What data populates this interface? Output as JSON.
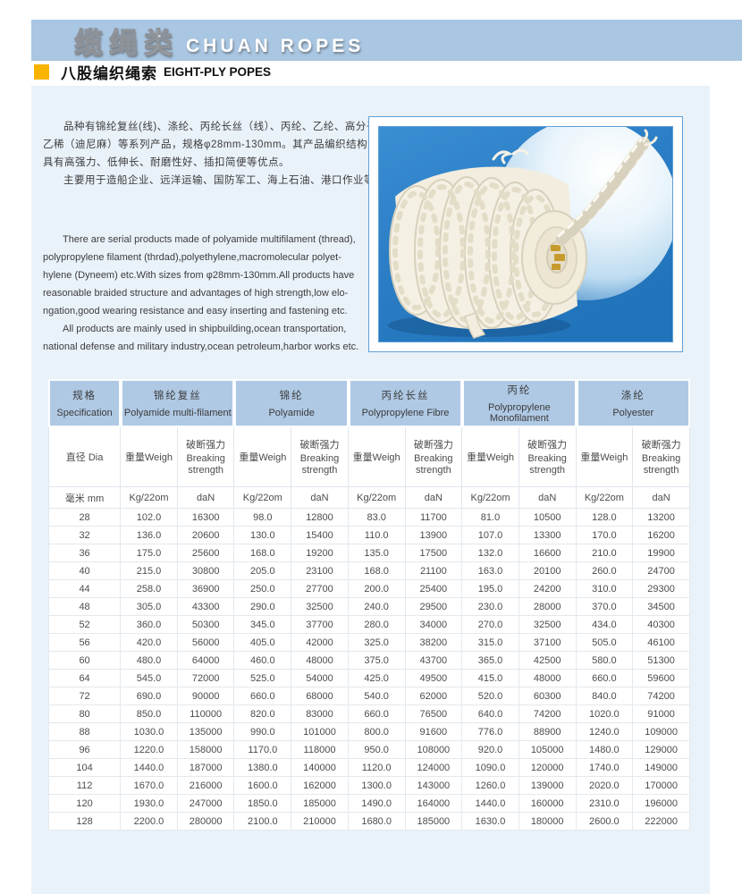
{
  "colors": {
    "band_bg": "#a9c6e2",
    "panel_bg": "#e9f1f9",
    "table_header_bg": "#afc9e4",
    "bullet_yellow": "#f8b400",
    "photo_blue": "#2a7cc4"
  },
  "header": {
    "title_zh": "缆绳类",
    "title_en": "CHUAN ROPES"
  },
  "section": {
    "title_zh": "八股编织绳索",
    "title_en": "EIGHT-PLY POPES"
  },
  "intro": {
    "zh_lines": [
      {
        "text": "品种有锦纶复丝(线)、涤纶、丙纶长丝（线）、丙纶、乙纶、高分子聚",
        "indent": true
      },
      {
        "text": "乙稀（迪尼麻）等系列产品，规格φ28mm-130mm。其产品编织结构合理，",
        "indent": false
      },
      {
        "text": "具有高强力、低伸长、耐磨性好、插扣简便等优点。",
        "indent": false
      },
      {
        "text": "主要用于造船企业、远洋运输、国防军工、海上石油、港口作业等领域。",
        "indent": true
      }
    ],
    "en_lines": [
      {
        "text": "There are serial products made of polyamide multifilament (thread),",
        "indent": true
      },
      {
        "text": "polypropylene filament (thrdad),polyethylene,macromolecular polyet-",
        "indent": false
      },
      {
        "text": "hylene (Dyneem) etc.With sizes from φ28mm-130mm.All products have",
        "indent": false
      },
      {
        "text": "reasonable braided structure and advantages of high strength,low elo-",
        "indent": false
      },
      {
        "text": "ngation,good wearing resistance and easy  inserting and fastening etc.",
        "indent": false
      },
      {
        "text": "All products are mainly used in shipbuilding,ocean transportation,",
        "indent": true
      },
      {
        "text": "national defense and military industry,ocean petroleum,harbor works etc.",
        "indent": false
      }
    ]
  },
  "photo": {
    "subject": "eight-ply-rope-coil"
  },
  "table": {
    "spec": {
      "zh": "规格",
      "en": "Specification",
      "dia": "直径 Dia",
      "unit": "毫米 mm"
    },
    "groups": [
      {
        "zh": "锦纶复丝",
        "en": "Polyamide multi-filament"
      },
      {
        "zh": "锦纶",
        "en": "Polyamide"
      },
      {
        "zh": "丙纶长丝",
        "en": "Polypropylene Fibre"
      },
      {
        "zh": "丙纶",
        "en": "Polypropylene Monofilament"
      },
      {
        "zh": "涤纶",
        "en": "Polyester"
      }
    ],
    "sub": {
      "weight_zh": "重量",
      "weight_en": "Weigh",
      "strength_zh": "破断强力",
      "strength_en": "Breaking strength"
    },
    "units": {
      "weight": "Kg/22om",
      "strength": "daN"
    },
    "rows": [
      [
        "28",
        "102.0",
        "16300",
        "98.0",
        "12800",
        "83.0",
        "11700",
        "81.0",
        "10500",
        "128.0",
        "13200"
      ],
      [
        "32",
        "136.0",
        "20600",
        "130.0",
        "15400",
        "110.0",
        "13900",
        "107.0",
        "13300",
        "170.0",
        "16200"
      ],
      [
        "36",
        "175.0",
        "25600",
        "168.0",
        "19200",
        "135.0",
        "17500",
        "132.0",
        "16600",
        "210.0",
        "19900"
      ],
      [
        "40",
        "215.0",
        "30800",
        "205.0",
        "23100",
        "168.0",
        "21100",
        "163.0",
        "20100",
        "260.0",
        "24700"
      ],
      [
        "44",
        "258.0",
        "36900",
        "250.0",
        "27700",
        "200.0",
        "25400",
        "195.0",
        "24200",
        "310.0",
        "29300"
      ],
      [
        "48",
        "305.0",
        "43300",
        "290.0",
        "32500",
        "240.0",
        "29500",
        "230.0",
        "28000",
        "370.0",
        "34500"
      ],
      [
        "52",
        "360.0",
        "50300",
        "345.0",
        "37700",
        "280.0",
        "34000",
        "270.0",
        "32500",
        "434.0",
        "40300"
      ],
      [
        "56",
        "420.0",
        "56000",
        "405.0",
        "42000",
        "325.0",
        "38200",
        "315.0",
        "37100",
        "505.0",
        "46100"
      ],
      [
        "60",
        "480.0",
        "64000",
        "460.0",
        "48000",
        "375.0",
        "43700",
        "365.0",
        "42500",
        "580.0",
        "51300"
      ],
      [
        "64",
        "545.0",
        "72000",
        "525.0",
        "54000",
        "425.0",
        "49500",
        "415.0",
        "48000",
        "660.0",
        "59600"
      ],
      [
        "72",
        "690.0",
        "90000",
        "660.0",
        "68000",
        "540.0",
        "62000",
        "520.0",
        "60300",
        "840.0",
        "74200"
      ],
      [
        "80",
        "850.0",
        "110000",
        "820.0",
        "83000",
        "660.0",
        "76500",
        "640.0",
        "74200",
        "1020.0",
        "91000"
      ],
      [
        "88",
        "1030.0",
        "135000",
        "990.0",
        "101000",
        "800.0",
        "91600",
        "776.0",
        "88900",
        "1240.0",
        "109000"
      ],
      [
        "96",
        "1220.0",
        "158000",
        "1170.0",
        "118000",
        "950.0",
        "108000",
        "920.0",
        "105000",
        "1480.0",
        "129000"
      ],
      [
        "104",
        "1440.0",
        "187000",
        "1380.0",
        "140000",
        "1120.0",
        "124000",
        "1090.0",
        "120000",
        "1740.0",
        "149000"
      ],
      [
        "112",
        "1670.0",
        "216000",
        "1600.0",
        "162000",
        "1300.0",
        "143000",
        "1260.0",
        "139000",
        "2020.0",
        "170000"
      ],
      [
        "120",
        "1930.0",
        "247000",
        "1850.0",
        "185000",
        "1490.0",
        "164000",
        "1440.0",
        "160000",
        "2310.0",
        "196000"
      ],
      [
        "128",
        "2200.0",
        "280000",
        "2100.0",
        "210000",
        "1680.0",
        "185000",
        "1630.0",
        "180000",
        "2600.0",
        "222000"
      ]
    ]
  }
}
